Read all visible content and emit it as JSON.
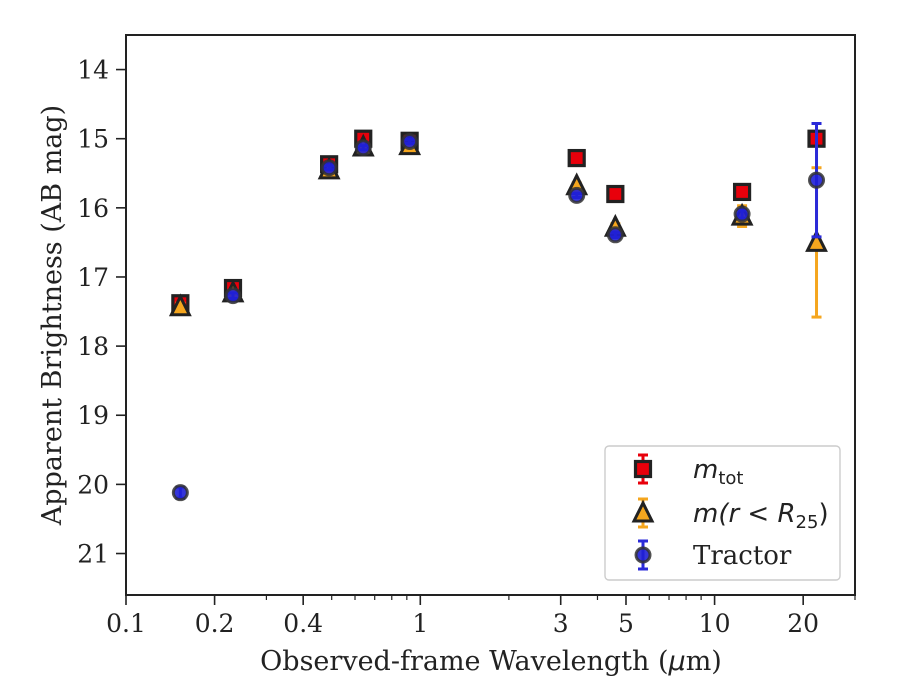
{
  "chart_data": {
    "type": "scatter",
    "xlabel_pre": "Observed-frame Wavelength (",
    "xlabel_mu": "μ",
    "xlabel_post": "m)",
    "ylabel": "Apparent Brightness (AB mag)",
    "xscale": "log",
    "xlim": [
      0.1,
      30
    ],
    "ylim": [
      21.6,
      13.5
    ],
    "y_inverted": true,
    "grid": false,
    "legend_position": "lower-right",
    "x_ticks": [
      {
        "value": 0.1,
        "label": "0.1"
      },
      {
        "value": 0.2,
        "label": "0.2"
      },
      {
        "value": 0.4,
        "label": "0.4"
      },
      {
        "value": 1,
        "label": "1"
      },
      {
        "value": 3,
        "label": "3"
      },
      {
        "value": 5,
        "label": "5"
      },
      {
        "value": 10,
        "label": "10"
      },
      {
        "value": 20,
        "label": "20"
      }
    ],
    "y_ticks": [
      {
        "value": 14,
        "label": "14"
      },
      {
        "value": 15,
        "label": "15"
      },
      {
        "value": 16,
        "label": "16"
      },
      {
        "value": 17,
        "label": "17"
      },
      {
        "value": 18,
        "label": "18"
      },
      {
        "value": 19,
        "label": "19"
      },
      {
        "value": 20,
        "label": "20"
      },
      {
        "value": 21,
        "label": "21"
      }
    ],
    "series": [
      {
        "key": "mtot",
        "legend_base": "m",
        "legend_sub": "tot",
        "marker": "square",
        "color": "#e8000b",
        "edge": "#222222",
        "error_color": "#e8000b",
        "points": [
          {
            "x": 0.153,
            "y": 17.38,
            "err": 0.06
          },
          {
            "x": 0.231,
            "y": 17.16,
            "err": 0.05
          },
          {
            "x": 0.49,
            "y": 15.37,
            "err": 0.03
          },
          {
            "x": 0.64,
            "y": 15.0,
            "err": 0.03
          },
          {
            "x": 0.92,
            "y": 15.03,
            "err": 0.03
          },
          {
            "x": 3.4,
            "y": 15.28,
            "err": 0.02
          },
          {
            "x": 4.6,
            "y": 15.8,
            "err": 0.02
          },
          {
            "x": 12.4,
            "y": 15.77,
            "err": 0.03
          },
          {
            "x": 22.2,
            "y": 15.0,
            "err": 0.02
          }
        ]
      },
      {
        "key": "mr25",
        "legend_base": "m",
        "legend_open": "(r < R",
        "legend_sub": "25",
        "legend_close": ")",
        "marker": "triangle",
        "color": "#f5a61e",
        "edge": "#222222",
        "error_color": "#f5a61e",
        "points": [
          {
            "x": 0.153,
            "y": 17.43,
            "err": 0.05
          },
          {
            "x": 0.231,
            "y": 17.23,
            "err": 0.04
          },
          {
            "x": 0.49,
            "y": 15.45,
            "err": 0.03
          },
          {
            "x": 0.64,
            "y": 15.12,
            "err": 0.03
          },
          {
            "x": 0.92,
            "y": 15.1,
            "err": 0.03
          },
          {
            "x": 3.4,
            "y": 15.68,
            "err": 0.04
          },
          {
            "x": 4.6,
            "y": 16.28,
            "err": 0.05
          },
          {
            "x": 12.4,
            "y": 16.12,
            "err": 0.15
          },
          {
            "x": 22.2,
            "y": 16.5,
            "err": 1.08
          }
        ]
      },
      {
        "key": "tractor",
        "legend_base": "Tractor",
        "marker": "circle",
        "color": "#1f1fd6",
        "edge": "#333333",
        "error_color": "#2a2ad8",
        "points": [
          {
            "x": 0.153,
            "y": 20.12,
            "err": 0.08
          },
          {
            "x": 0.231,
            "y": 17.27,
            "err": 0.04
          },
          {
            "x": 0.49,
            "y": 15.42,
            "err": 0.03
          },
          {
            "x": 0.64,
            "y": 15.13,
            "err": 0.03
          },
          {
            "x": 0.92,
            "y": 15.04,
            "err": 0.03
          },
          {
            "x": 3.4,
            "y": 15.82,
            "err": 0.03
          },
          {
            "x": 4.6,
            "y": 16.39,
            "err": 0.04
          },
          {
            "x": 12.4,
            "y": 16.09,
            "err": 0.06
          },
          {
            "x": 22.2,
            "y": 15.6,
            "err": 0.82
          }
        ]
      }
    ]
  }
}
